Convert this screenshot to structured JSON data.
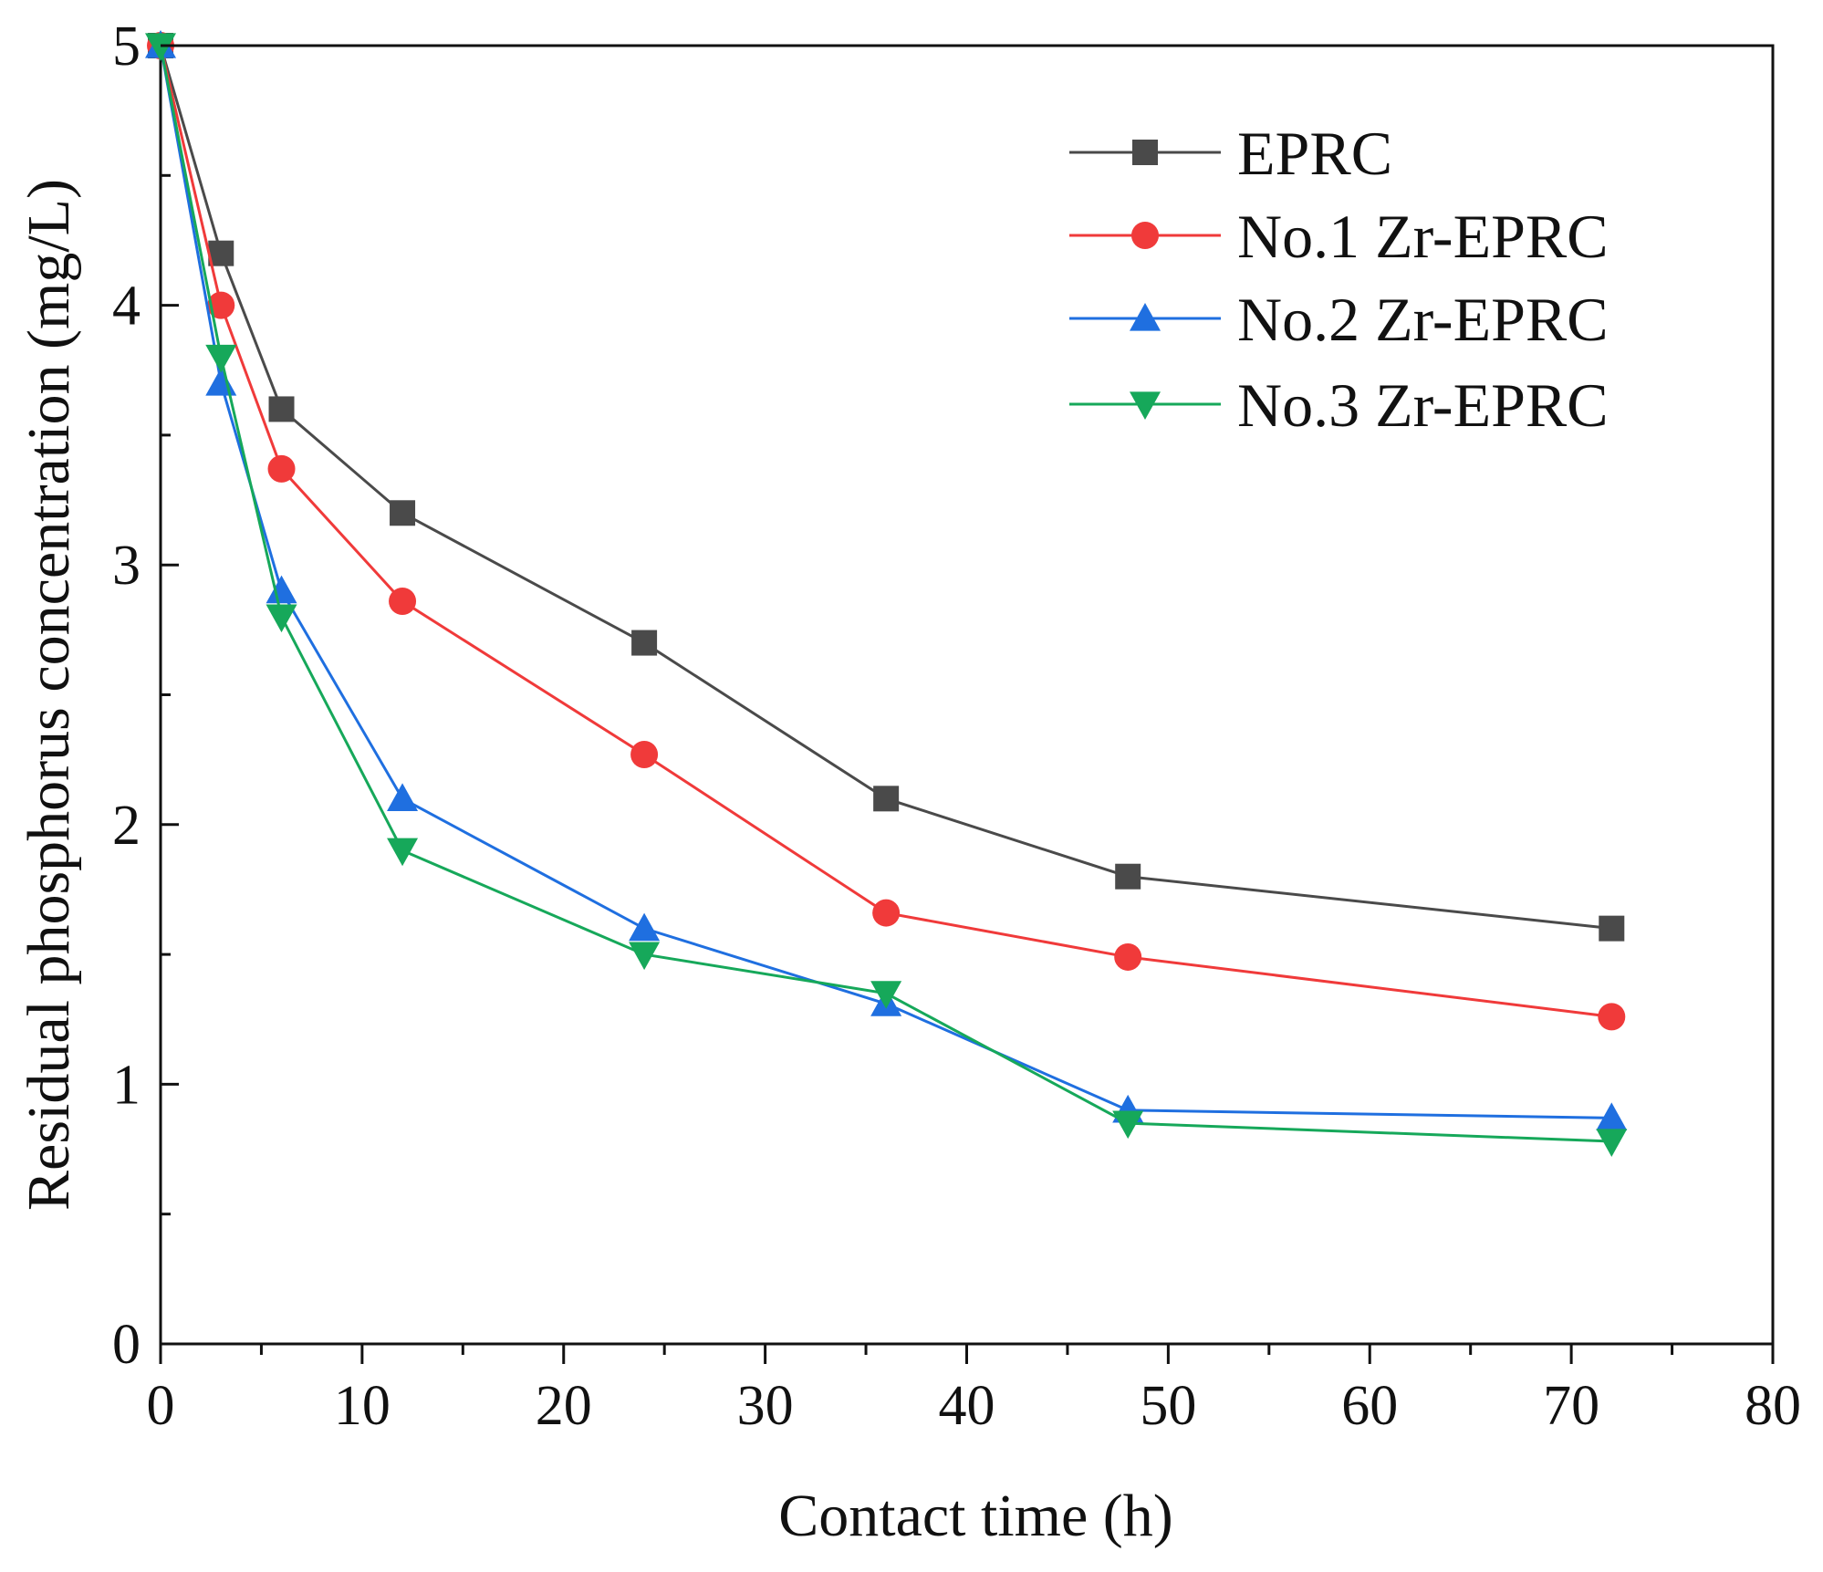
{
  "chart_data": {
    "type": "line",
    "title": "",
    "xlabel": "Contact time (h)",
    "ylabel": "Residual phosphorus concentration (mg/L)",
    "xlim": [
      0,
      80
    ],
    "ylim": [
      0,
      5
    ],
    "xticks": [
      0,
      10,
      20,
      30,
      40,
      50,
      60,
      70,
      80
    ],
    "yticks": [
      0,
      1,
      2,
      3,
      4,
      5
    ],
    "grid": false,
    "legend_position": "top-right",
    "x": [
      0,
      3,
      6,
      12,
      24,
      36,
      48,
      72
    ],
    "series": [
      {
        "name": "EPRC",
        "marker": "square",
        "color": "#4a4a4a",
        "values": [
          5.0,
          4.2,
          3.6,
          3.2,
          2.7,
          2.1,
          1.8,
          1.6
        ]
      },
      {
        "name": "No.1 Zr-EPRC",
        "marker": "circle",
        "color": "#f03a3a",
        "values": [
          5.0,
          4.0,
          3.37,
          2.86,
          2.27,
          1.66,
          1.49,
          1.26
        ]
      },
      {
        "name": "No.2 Zr-EPRC",
        "marker": "triangle-up",
        "color": "#1f6fe0",
        "values": [
          5.0,
          3.7,
          2.9,
          2.1,
          1.6,
          1.31,
          0.9,
          0.87
        ]
      },
      {
        "name": "No.3 Zr-EPRC",
        "marker": "triangle-down",
        "color": "#16a85a",
        "values": [
          5.0,
          3.8,
          2.8,
          1.9,
          1.5,
          1.35,
          0.85,
          0.78
        ]
      }
    ]
  }
}
